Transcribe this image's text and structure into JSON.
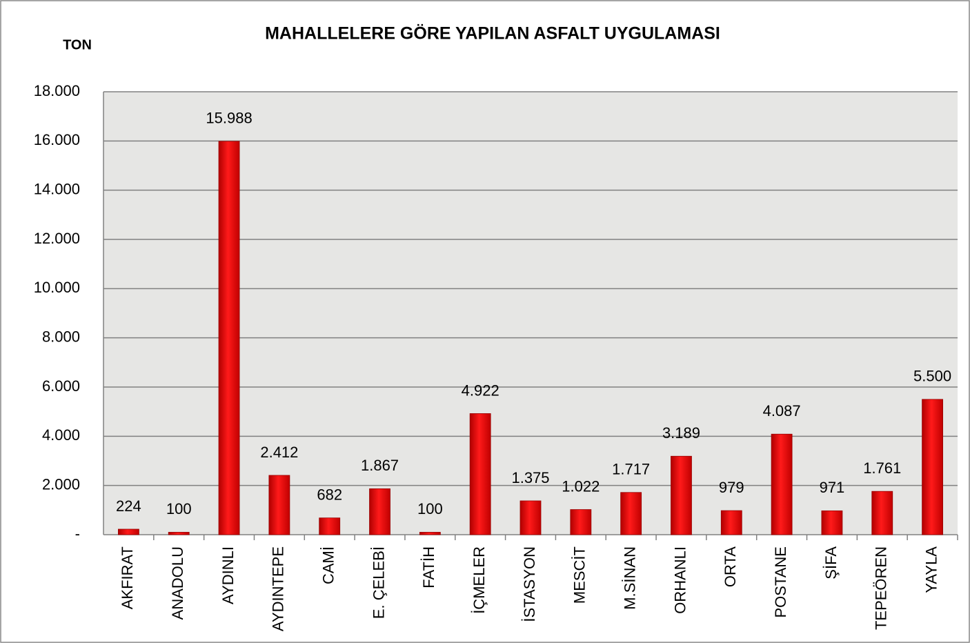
{
  "chart_data": {
    "type": "bar",
    "title": "MAHALLELERE GÖRE YAPILAN ASFALT UYGULAMASI",
    "y_label": "TON",
    "categories": [
      "AKFIRAT",
      "ANADOLU",
      "AYDINLI",
      "AYDINTEPE",
      "CAMİ",
      "E. ÇELEBİ",
      "FATİH",
      "İÇMELER",
      "İSTASYON",
      "MESCİT",
      "M.SİNAN",
      "ORHANLI",
      "ORTA",
      "POSTANE",
      "ŞİFA",
      "TEPEÖREN",
      "YAYLA"
    ],
    "values": [
      224,
      100,
      15988,
      2412,
      682,
      1867,
      100,
      4922,
      1375,
      1022,
      1717,
      3189,
      979,
      4087,
      971,
      1761,
      5500
    ],
    "value_labels": [
      "224",
      "100",
      "15.988",
      "2.412",
      "682",
      "1.867",
      "100",
      "4.922",
      "1.375",
      "1.022",
      "1.717",
      "3.189",
      "979",
      "4.087",
      "971",
      "1.761",
      "5.500"
    ],
    "color": "#ff0000",
    "ylim": [
      0,
      18000
    ],
    "yticks": [
      {
        "value": 0,
        "label": "-"
      },
      {
        "value": 2000,
        "label": "2.000"
      },
      {
        "value": 4000,
        "label": "4.000"
      },
      {
        "value": 6000,
        "label": "6.000"
      },
      {
        "value": 8000,
        "label": "8.000"
      },
      {
        "value": 10000,
        "label": "10.000"
      },
      {
        "value": 12000,
        "label": "12.000"
      },
      {
        "value": 14000,
        "label": "14.000"
      },
      {
        "value": 16000,
        "label": "16.000"
      },
      {
        "value": 18000,
        "label": "18.000"
      }
    ],
    "grid": true
  }
}
